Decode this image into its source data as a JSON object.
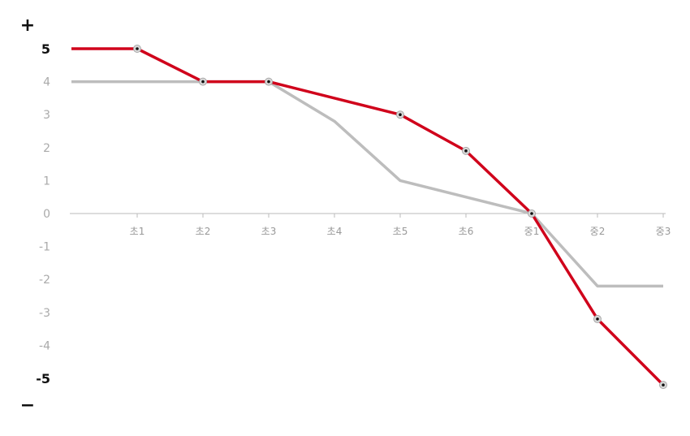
{
  "chart_data": {
    "type": "line",
    "categories": [
      "초1",
      "초2",
      "초3",
      "초4",
      "초5",
      "초6",
      "중1",
      "중2",
      "중3"
    ],
    "ylim": [
      -5,
      5
    ],
    "yticks": [
      5,
      4,
      3,
      2,
      1,
      0,
      -1,
      -2,
      -3,
      -4,
      -5
    ],
    "ytick_labels": [
      "5",
      "4",
      "3",
      "2",
      "1",
      "0",
      "-1",
      "-2",
      "-3",
      "-4",
      "-5"
    ],
    "top_sign": "+",
    "bottom_sign": "−",
    "grid": false,
    "series": [
      {
        "color": "#d0021b",
        "markers": true,
        "x": [
          0,
          1,
          2,
          3,
          4,
          5,
          6,
          7,
          8,
          9
        ],
        "values": [
          5,
          5,
          4,
          4,
          null,
          3,
          1.9,
          0,
          -3.2,
          -5.2
        ]
      },
      {
        "color": "#bdbdbd",
        "markers": false,
        "x": [
          0,
          1,
          2,
          3,
          4,
          5,
          6,
          7,
          8,
          9
        ],
        "values": [
          4,
          4,
          4,
          4,
          2.8,
          1,
          null,
          0,
          -2.2,
          -2.2
        ]
      }
    ]
  }
}
